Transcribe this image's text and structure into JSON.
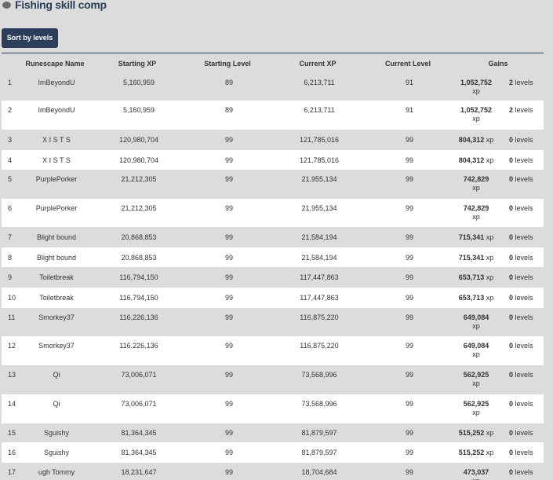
{
  "header": {
    "title": "Fishing skill comp",
    "sort_button": "Sort by levels"
  },
  "table": {
    "columns": [
      "Runescape Name",
      "Starting XP",
      "Starting Level",
      "Current XP",
      "Current Level",
      "Gains"
    ],
    "units": {
      "xp": "xp",
      "levels": "levels"
    },
    "rows": [
      [
        "1",
        "ImBeyondU",
        "5,160,959",
        "89",
        "6,213,711",
        "91",
        "1,052,752",
        "2"
      ],
      [
        "2",
        "ImBeyondU",
        "5,160,959",
        "89",
        "6,213,711",
        "91",
        "1,052,752",
        "2"
      ],
      [
        "3",
        "X I S T S",
        "120,980,704",
        "99",
        "121,785,016",
        "99",
        "804,312",
        "0"
      ],
      [
        "4",
        "X I S T S",
        "120,980,704",
        "99",
        "121,785,016",
        "99",
        "804,312",
        "0"
      ],
      [
        "5",
        "PurplePorker",
        "21,212,305",
        "99",
        "21,955,134",
        "99",
        "742,829",
        "0"
      ],
      [
        "6",
        "PurplePorker",
        "21,212,305",
        "99",
        "21,955,134",
        "99",
        "742,829",
        "0"
      ],
      [
        "7",
        "Blight bound",
        "20,868,853",
        "99",
        "21,584,194",
        "99",
        "715,341",
        "0"
      ],
      [
        "8",
        "Blight bound",
        "20,868,853",
        "99",
        "21,584,194",
        "99",
        "715,341",
        "0"
      ],
      [
        "9",
        "Toiletbreak",
        "116,794,150",
        "99",
        "117,447,863",
        "99",
        "653,713",
        "0"
      ],
      [
        "10",
        "Toiletbreak",
        "116,794,150",
        "99",
        "117,447,863",
        "99",
        "653,713",
        "0"
      ],
      [
        "11",
        "Smorkey37",
        "116,226,136",
        "99",
        "116,875,220",
        "99",
        "649,084",
        "0"
      ],
      [
        "12",
        "Smorkey37",
        "116,226,136",
        "99",
        "116,875,220",
        "99",
        "649,084",
        "0"
      ],
      [
        "13",
        "Qi",
        "73,006,071",
        "99",
        "73,568,996",
        "99",
        "562,925",
        "0"
      ],
      [
        "14",
        "Qi",
        "73,006,071",
        "99",
        "73,568,996",
        "99",
        "562,925",
        "0"
      ],
      [
        "15",
        "Sguishy",
        "81,364,345",
        "99",
        "81,879,597",
        "99",
        "515,252",
        "0"
      ],
      [
        "16",
        "Sguishy",
        "81,364,345",
        "99",
        "81,879,597",
        "99",
        "515,252",
        "0"
      ],
      [
        "17",
        "ugh Tommy",
        "18,231,647",
        "99",
        "18,704,684",
        "99",
        "473,037",
        "0"
      ]
    ]
  }
}
